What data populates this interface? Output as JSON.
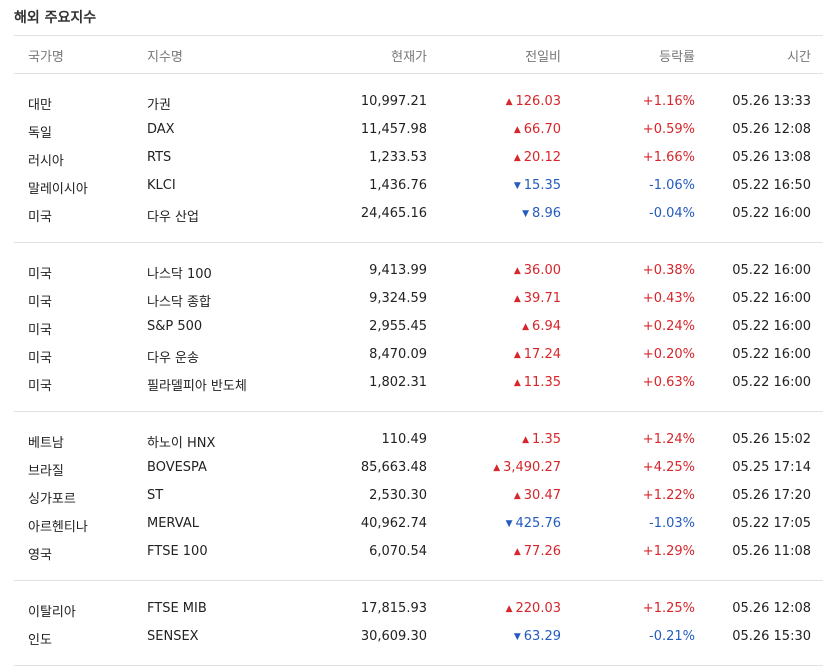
{
  "title": "해외 주요지수",
  "headers": [
    "국가명",
    "지수명",
    "현재가",
    "전일비",
    "등락률",
    "시간"
  ],
  "groups": [
    [
      {
        "country": "대만",
        "name": "가권",
        "price": "10,997.21",
        "dir": "up",
        "change": "126.03",
        "rate": "+1.16%",
        "time": "05.26 13:33"
      },
      {
        "country": "독일",
        "name": "DAX",
        "price": "11,457.98",
        "dir": "up",
        "change": "66.70",
        "rate": "+0.59%",
        "time": "05.26 12:08"
      },
      {
        "country": "러시아",
        "name": "RTS",
        "price": "1,233.53",
        "dir": "up",
        "change": "20.12",
        "rate": "+1.66%",
        "time": "05.26 13:08"
      },
      {
        "country": "말레이시아",
        "name": "KLCI",
        "price": "1,436.76",
        "dir": "down",
        "change": "15.35",
        "rate": "-1.06%",
        "time": "05.22 16:50"
      },
      {
        "country": "미국",
        "name": "다우 산업",
        "price": "24,465.16",
        "dir": "down",
        "change": "8.96",
        "rate": "-0.04%",
        "time": "05.22 16:00"
      }
    ],
    [
      {
        "country": "미국",
        "name": "나스닥 100",
        "price": "9,413.99",
        "dir": "up",
        "change": "36.00",
        "rate": "+0.38%",
        "time": "05.22 16:00"
      },
      {
        "country": "미국",
        "name": "나스닥 종합",
        "price": "9,324.59",
        "dir": "up",
        "change": "39.71",
        "rate": "+0.43%",
        "time": "05.22 16:00"
      },
      {
        "country": "미국",
        "name": "S&P 500",
        "price": "2,955.45",
        "dir": "up",
        "change": "6.94",
        "rate": "+0.24%",
        "time": "05.22 16:00"
      },
      {
        "country": "미국",
        "name": "다우 운송",
        "price": "8,470.09",
        "dir": "up",
        "change": "17.24",
        "rate": "+0.20%",
        "time": "05.22 16:00"
      },
      {
        "country": "미국",
        "name": "필라델피아 반도체",
        "price": "1,802.31",
        "dir": "up",
        "change": "11.35",
        "rate": "+0.63%",
        "time": "05.22 16:00"
      }
    ],
    [
      {
        "country": "베트남",
        "name": "하노이 HNX",
        "price": "110.49",
        "dir": "up",
        "change": "1.35",
        "rate": "+1.24%",
        "time": "05.26 15:02"
      },
      {
        "country": "브라질",
        "name": "BOVESPA",
        "price": "85,663.48",
        "dir": "up",
        "change": "3,490.27",
        "rate": "+4.25%",
        "time": "05.25 17:14"
      },
      {
        "country": "싱가포르",
        "name": "ST",
        "price": "2,530.30",
        "dir": "up",
        "change": "30.47",
        "rate": "+1.22%",
        "time": "05.26 17:20"
      },
      {
        "country": "아르헨티나",
        "name": "MERVAL",
        "price": "40,962.74",
        "dir": "down",
        "change": "425.76",
        "rate": "-1.03%",
        "time": "05.22 17:05"
      },
      {
        "country": "영국",
        "name": "FTSE 100",
        "price": "6,070.54",
        "dir": "up",
        "change": "77.26",
        "rate": "+1.29%",
        "time": "05.26 11:08"
      }
    ],
    [
      {
        "country": "이탈리아",
        "name": "FTSE MIB",
        "price": "17,815.93",
        "dir": "up",
        "change": "220.03",
        "rate": "+1.25%",
        "time": "05.26 12:08"
      },
      {
        "country": "인도",
        "name": "SENSEX",
        "price": "30,609.30",
        "dir": "down",
        "change": "63.29",
        "rate": "-0.21%",
        "time": "05.26 15:30"
      }
    ]
  ]
}
